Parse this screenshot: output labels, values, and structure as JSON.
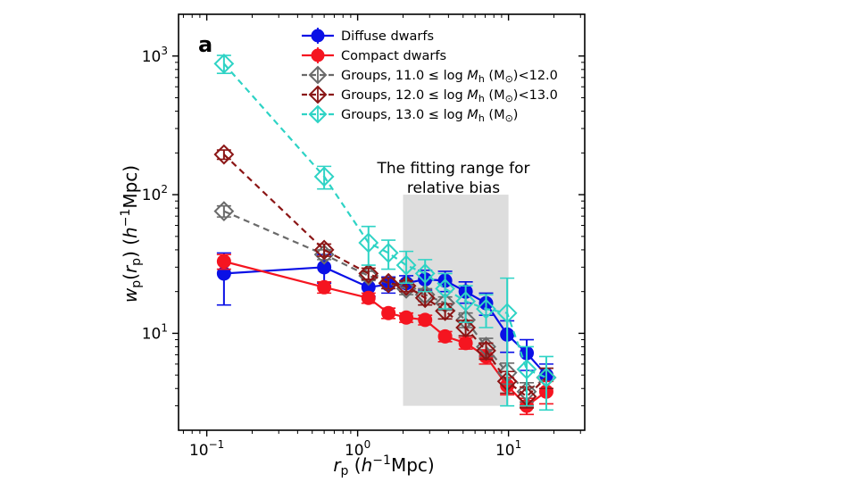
{
  "chart_data": {
    "type": "scatter",
    "panel_label": "a",
    "xlabel_parts": {
      "main": "r",
      "sub": "p",
      "mid": " (",
      "italic": "h",
      "sup": "−1",
      "end": "Mpc)"
    },
    "ylabel_parts": {
      "main": "w",
      "sub": "p",
      "mid1": "(",
      "arg": "r",
      "argsub": "p",
      "mid2": ") (",
      "italic": "h",
      "sup": "−1",
      "end": "Mpc)"
    },
    "xscale": "log",
    "yscale": "log",
    "xlim": [
      0.065,
      32
    ],
    "ylim": [
      2.0,
      2000
    ],
    "x_ticks": [
      {
        "value": 0.1,
        "base": "10",
        "exp": "−1"
      },
      {
        "value": 1,
        "base": "10",
        "exp": "0"
      },
      {
        "value": 10,
        "base": "10",
        "exp": "1"
      }
    ],
    "y_ticks": [
      {
        "value": 10,
        "base": "10",
        "exp": "1"
      },
      {
        "value": 100,
        "base": "10",
        "exp": "2"
      },
      {
        "value": 1000,
        "base": "10",
        "exp": "3"
      }
    ],
    "shaded_region": {
      "x": [
        2,
        10
      ],
      "y": [
        3,
        100
      ],
      "color": "#dddddd"
    },
    "annotation": {
      "line1": "The fitting range for",
      "line2": "relative bias",
      "x": 4.4,
      "y": 170
    },
    "legend_position": "top-center",
    "series": [
      {
        "name": "Diffuse dwarfs",
        "legend": {
          "text": "Diffuse dwarfs"
        },
        "color": "#0a10e6",
        "marker": "circle",
        "linestyle": "solid",
        "filled": true,
        "x": [
          0.13,
          0.6,
          1.18,
          1.6,
          2.1,
          2.8,
          3.8,
          5.2,
          7.1,
          9.8,
          13.2,
          17.8
        ],
        "y": [
          27,
          30,
          21.5,
          22.5,
          23,
          24.5,
          24,
          20,
          16.5,
          9.8,
          7.2,
          5.0
        ],
        "err": [
          11,
          7,
          3,
          3,
          3,
          4,
          4,
          3.5,
          3,
          2.5,
          1.8,
          1.0
        ]
      },
      {
        "name": "Compact dwarfs",
        "legend": {
          "text": "Compact dwarfs"
        },
        "color": "#f51520",
        "marker": "circle",
        "linestyle": "solid",
        "filled": true,
        "x": [
          0.13,
          0.6,
          1.18,
          1.6,
          2.1,
          2.8,
          3.8,
          5.2,
          7.1,
          9.8,
          13.2,
          17.8
        ],
        "y": [
          33,
          21.5,
          18,
          14,
          13,
          12.5,
          9.5,
          8.5,
          6.8,
          4.2,
          3.0,
          3.8
        ],
        "err": [
          4,
          2,
          1.5,
          1.2,
          1,
          1,
          0.8,
          0.8,
          0.8,
          0.6,
          0.4,
          0.7
        ]
      },
      {
        "name": "Groups, 11.0 ≤ log Mh (M⊙)<12.0",
        "legend": {
          "prefix": "Groups, 11.0 ≤ log ",
          "mass": "M",
          "masssub": "h",
          "unit": " (M",
          "sun": "⊙",
          "suffix": ")<12.0"
        },
        "color": "#6a6a6a",
        "marker": "diamond",
        "linestyle": "dashed",
        "filled": false,
        "x": [
          0.13,
          0.6,
          1.18,
          1.6,
          2.1,
          2.8,
          3.8,
          5.2,
          7.1,
          9.8,
          13.2,
          17.8
        ],
        "y": [
          76,
          37,
          26,
          23,
          21,
          19,
          16.5,
          12.5,
          8,
          5.2,
          3.8,
          4.8
        ],
        "err": [
          7,
          3,
          2,
          2,
          2,
          2,
          1.8,
          1.5,
          1.2,
          0.9,
          0.6,
          0.8
        ]
      },
      {
        "name": "Groups, 12.0 ≤ log Mh (M⊙)<13.0",
        "legend": {
          "prefix": "Groups, 12.0 ≤ log ",
          "mass": "M",
          "masssub": "h",
          "unit": " (M",
          "sun": "⊙",
          "suffix": ")<13.0"
        },
        "color": "#8b1515",
        "marker": "diamond",
        "linestyle": "dashed",
        "filled": false,
        "x": [
          0.13,
          0.6,
          1.18,
          1.6,
          2.1,
          2.8,
          3.8,
          5.2,
          7.1,
          9.8,
          13.2,
          17.8
        ],
        "y": [
          195,
          40,
          27,
          23,
          22,
          18,
          14.5,
          11,
          7.5,
          4.5,
          3.5,
          4.8
        ],
        "err": [
          15,
          4,
          2.5,
          2,
          2,
          2,
          1.8,
          1.4,
          1.0,
          0.8,
          0.6,
          0.8
        ]
      },
      {
        "name": "Groups, 13.0 ≤ log Mh (M⊙)",
        "legend": {
          "prefix": "Groups, 13.0 ≤ log ",
          "mass": "M",
          "masssub": "h",
          "unit": " (M",
          "sun": "⊙",
          "suffix": ")"
        },
        "color": "#2ed3c5",
        "marker": "diamond",
        "linestyle": "dashed",
        "filled": false,
        "x": [
          0.13,
          0.6,
          1.18,
          1.6,
          2.1,
          2.8,
          3.8,
          5.2,
          7.1,
          9.8,
          13.2,
          17.8
        ],
        "y": [
          880,
          135,
          45,
          38,
          31,
          27,
          21,
          17,
          15,
          14,
          5.5,
          4.8
        ],
        "err": [
          130,
          25,
          14,
          9,
          8,
          7,
          6,
          5,
          4,
          11,
          2.5,
          2.0
        ]
      }
    ]
  }
}
